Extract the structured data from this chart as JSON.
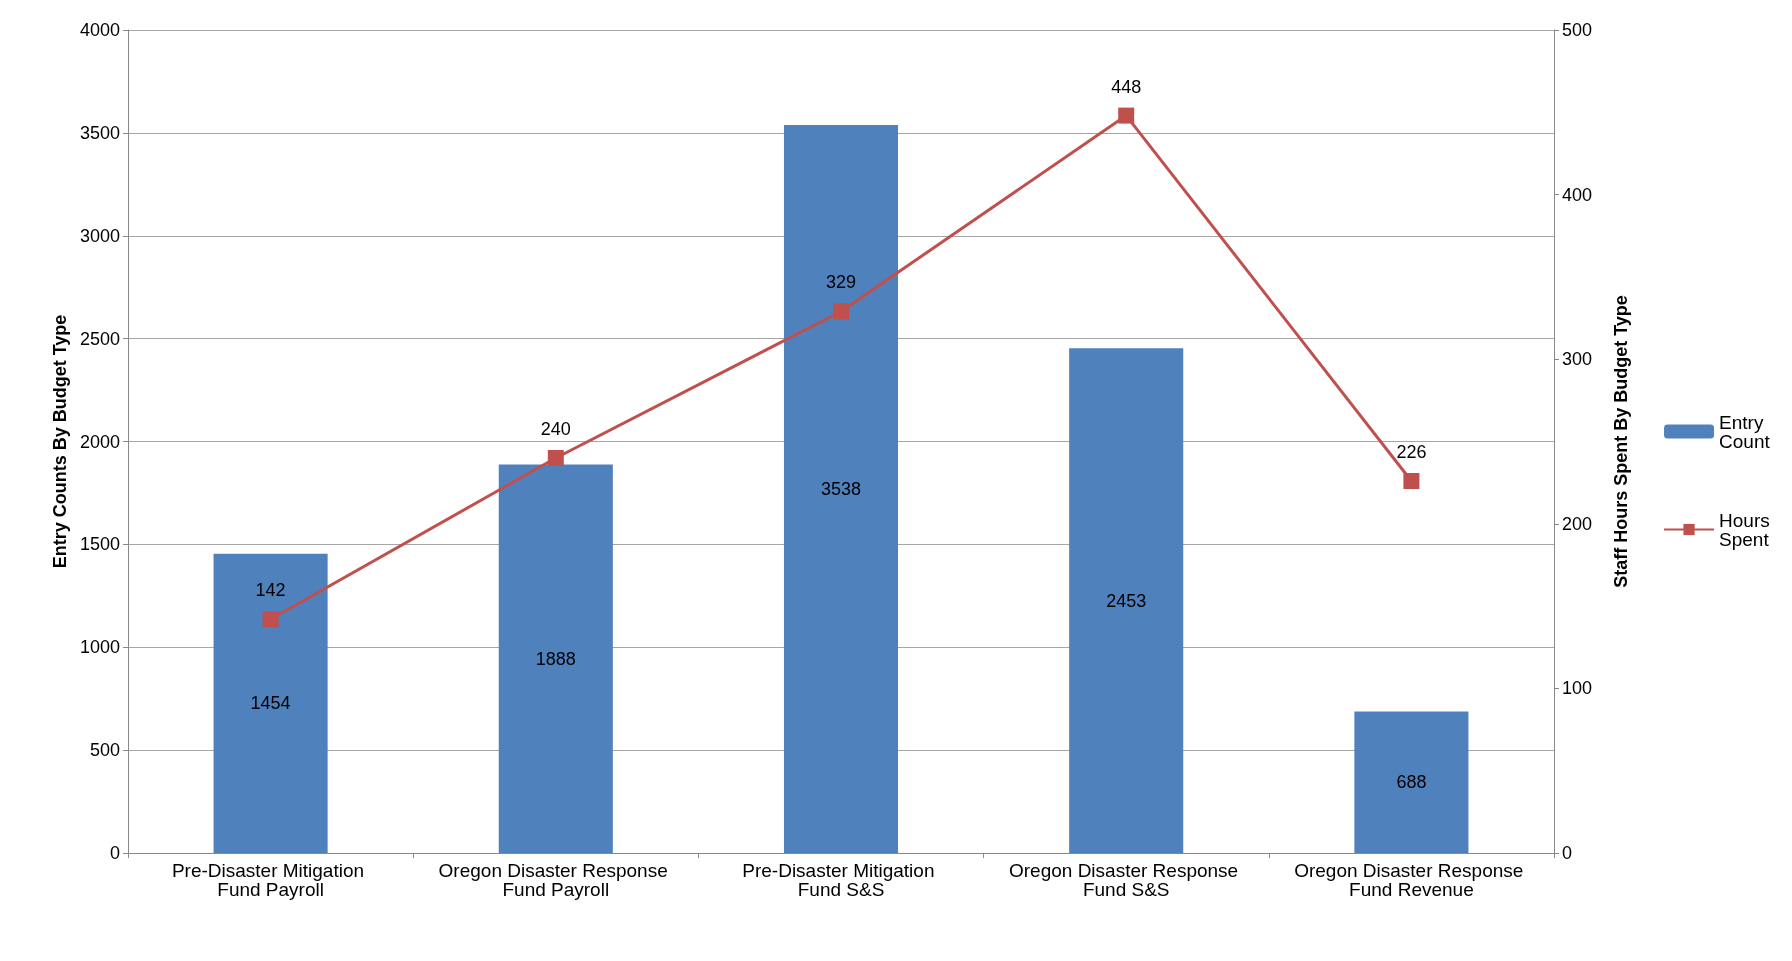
{
  "chart_data": {
    "type": "bar",
    "ylabel": "Entry Counts By Budget Type",
    "y2label": "Staff Hours Spent By Budget Type",
    "categories": [
      "Pre-Disaster Mitigation Fund Payroll",
      "Oregon Disaster Response Fund Payroll",
      "Pre-Disaster Mitigation Fund S&S",
      "Oregon Disaster Response Fund S&S",
      "Oregon Disaster Response Fund Revenue"
    ],
    "series": [
      {
        "name": "Entry Count",
        "color": "#4f81bd",
        "values": [
          1454,
          1888,
          3538,
          2453,
          688
        ]
      },
      {
        "name": "Hours Spent",
        "type": "line",
        "axis": "y2",
        "color": "#c0504d",
        "marker": "square",
        "values": [
          142,
          240,
          329,
          448,
          226
        ]
      }
    ],
    "ylim": [
      0,
      4000
    ],
    "yticks": [
      0,
      500,
      1000,
      1500,
      2000,
      2500,
      3000,
      3500,
      4000
    ],
    "y2lim": [
      0,
      500
    ],
    "y2ticks": [
      0,
      100,
      200,
      300,
      400,
      500
    ],
    "grid": "y",
    "legend": "right",
    "data_labels": true
  }
}
